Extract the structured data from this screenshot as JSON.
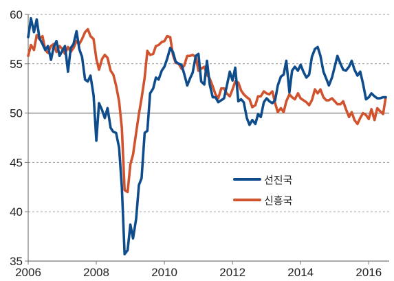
{
  "chart_data": {
    "type": "line",
    "title": "",
    "xlabel": "",
    "ylabel": "",
    "xlim": [
      2006.0,
      2016.6
    ],
    "ylim": [
      35,
      60
    ],
    "x_ticks": [
      2006,
      2008,
      2010,
      2012,
      2014,
      2016
    ],
    "x_tick_labels": [
      "2006",
      "2008",
      "2010",
      "2012",
      "2014",
      "2016"
    ],
    "y_ticks": [
      35,
      40,
      45,
      50,
      55,
      60
    ],
    "y_tick_labels": [
      "35",
      "40",
      "45",
      "50",
      "55",
      "60"
    ],
    "grid": "horizontal dashed",
    "reference_line": 50,
    "legend_position": "center-right",
    "colors": {
      "advanced": "#0e4c8c",
      "emerging": "#d0532e",
      "grid": "#9a9a9a",
      "axis": "#777777"
    },
    "series": [
      {
        "name": "선진국",
        "color": "#0e4c8c",
        "points": [
          [
            2006.0,
            57.7
          ],
          [
            2006.08,
            59.6
          ],
          [
            2006.17,
            58.2
          ],
          [
            2006.25,
            59.5
          ],
          [
            2006.33,
            57.6
          ],
          [
            2006.42,
            57.0
          ],
          [
            2006.5,
            56.4
          ],
          [
            2006.58,
            56.8
          ],
          [
            2006.67,
            55.4
          ],
          [
            2006.75,
            56.7
          ],
          [
            2006.83,
            57.3
          ],
          [
            2006.92,
            55.8
          ],
          [
            2007.0,
            56.3
          ],
          [
            2007.08,
            56.8
          ],
          [
            2007.17,
            54.2
          ],
          [
            2007.25,
            56.6
          ],
          [
            2007.33,
            57.0
          ],
          [
            2007.42,
            58.3
          ],
          [
            2007.5,
            56.5
          ],
          [
            2007.58,
            55.7
          ],
          [
            2007.67,
            53.4
          ],
          [
            2007.75,
            53.2
          ],
          [
            2007.83,
            53.8
          ],
          [
            2007.92,
            51.8
          ],
          [
            2008.0,
            47.2
          ],
          [
            2008.08,
            51.0
          ],
          [
            2008.17,
            50.3
          ],
          [
            2008.25,
            49.5
          ],
          [
            2008.33,
            50.5
          ],
          [
            2008.42,
            48.5
          ],
          [
            2008.5,
            48.1
          ],
          [
            2008.58,
            48.0
          ],
          [
            2008.67,
            46.5
          ],
          [
            2008.75,
            42.5
          ],
          [
            2008.83,
            35.7
          ],
          [
            2008.92,
            36.1
          ],
          [
            2009.0,
            38.7
          ],
          [
            2009.08,
            37.3
          ],
          [
            2009.17,
            39.3
          ],
          [
            2009.25,
            42.7
          ],
          [
            2009.33,
            43.4
          ],
          [
            2009.42,
            48.0
          ],
          [
            2009.5,
            48.2
          ],
          [
            2009.58,
            52.0
          ],
          [
            2009.67,
            52.5
          ],
          [
            2009.75,
            53.6
          ],
          [
            2009.83,
            53.4
          ],
          [
            2009.92,
            54.3
          ],
          [
            2010.0,
            54.7
          ],
          [
            2010.08,
            55.5
          ],
          [
            2010.17,
            56.6
          ],
          [
            2010.25,
            56.2
          ],
          [
            2010.33,
            55.2
          ],
          [
            2010.42,
            55.0
          ],
          [
            2010.5,
            54.9
          ],
          [
            2010.58,
            54.0
          ],
          [
            2010.67,
            52.8
          ],
          [
            2010.75,
            53.5
          ],
          [
            2010.83,
            54.1
          ],
          [
            2010.92,
            55.8
          ],
          [
            2011.0,
            56.0
          ],
          [
            2011.08,
            53.2
          ],
          [
            2011.17,
            52.9
          ],
          [
            2011.25,
            55.3
          ],
          [
            2011.33,
            52.9
          ],
          [
            2011.42,
            51.6
          ],
          [
            2011.5,
            51.6
          ],
          [
            2011.58,
            51.1
          ],
          [
            2011.67,
            51.3
          ],
          [
            2011.75,
            51.5
          ],
          [
            2011.83,
            52.7
          ],
          [
            2011.92,
            54.2
          ],
          [
            2012.0,
            53.3
          ],
          [
            2012.08,
            54.6
          ],
          [
            2012.17,
            51.2
          ],
          [
            2012.25,
            51.4
          ],
          [
            2012.33,
            51.1
          ],
          [
            2012.42,
            49.5
          ],
          [
            2012.5,
            48.8
          ],
          [
            2012.58,
            49.3
          ],
          [
            2012.67,
            48.9
          ],
          [
            2012.75,
            49.9
          ],
          [
            2012.83,
            49.6
          ],
          [
            2012.92,
            51.1
          ],
          [
            2013.0,
            51.5
          ],
          [
            2013.08,
            51.2
          ],
          [
            2013.17,
            51.0
          ],
          [
            2013.25,
            51.3
          ],
          [
            2013.33,
            52.8
          ],
          [
            2013.42,
            53.7
          ],
          [
            2013.5,
            53.9
          ],
          [
            2013.58,
            55.3
          ],
          [
            2013.67,
            52.1
          ],
          [
            2013.75,
            54.3
          ],
          [
            2013.83,
            54.7
          ],
          [
            2013.92,
            54.3
          ],
          [
            2014.0,
            54.9
          ],
          [
            2014.08,
            54.2
          ],
          [
            2014.17,
            53.6
          ],
          [
            2014.25,
            53.9
          ],
          [
            2014.33,
            55.7
          ],
          [
            2014.42,
            56.5
          ],
          [
            2014.5,
            56.7
          ],
          [
            2014.58,
            55.8
          ],
          [
            2014.67,
            54.2
          ],
          [
            2014.75,
            53.5
          ],
          [
            2014.83,
            52.8
          ],
          [
            2014.92,
            53.6
          ],
          [
            2015.0,
            54.7
          ],
          [
            2015.08,
            55.8
          ],
          [
            2015.17,
            55.0
          ],
          [
            2015.25,
            54.4
          ],
          [
            2015.33,
            54.3
          ],
          [
            2015.42,
            54.7
          ],
          [
            2015.5,
            55.3
          ],
          [
            2015.58,
            54.4
          ],
          [
            2015.67,
            53.8
          ],
          [
            2015.75,
            54.2
          ],
          [
            2015.83,
            53.0
          ],
          [
            2015.92,
            51.4
          ],
          [
            2016.0,
            51.6
          ],
          [
            2016.08,
            52.0
          ],
          [
            2016.17,
            51.7
          ],
          [
            2016.25,
            51.5
          ],
          [
            2016.33,
            51.5
          ],
          [
            2016.42,
            51.6
          ],
          [
            2016.5,
            51.6
          ]
        ]
      },
      {
        "name": "신흥국",
        "color": "#d0532e",
        "points": [
          [
            2006.0,
            55.8
          ],
          [
            2006.08,
            56.9
          ],
          [
            2006.17,
            56.4
          ],
          [
            2006.25,
            57.9
          ],
          [
            2006.33,
            57.5
          ],
          [
            2006.42,
            57.8
          ],
          [
            2006.5,
            56.4
          ],
          [
            2006.58,
            56.1
          ],
          [
            2006.67,
            56.8
          ],
          [
            2006.75,
            57.0
          ],
          [
            2006.83,
            56.2
          ],
          [
            2006.92,
            56.8
          ],
          [
            2007.0,
            56.5
          ],
          [
            2007.08,
            56.0
          ],
          [
            2007.17,
            56.7
          ],
          [
            2007.25,
            56.2
          ],
          [
            2007.33,
            56.6
          ],
          [
            2007.42,
            57.3
          ],
          [
            2007.5,
            57.0
          ],
          [
            2007.58,
            57.5
          ],
          [
            2007.67,
            58.2
          ],
          [
            2007.75,
            58.5
          ],
          [
            2007.83,
            57.8
          ],
          [
            2007.92,
            57.5
          ],
          [
            2008.0,
            55.5
          ],
          [
            2008.08,
            54.4
          ],
          [
            2008.17,
            55.5
          ],
          [
            2008.25,
            55.9
          ],
          [
            2008.33,
            55.6
          ],
          [
            2008.42,
            54.3
          ],
          [
            2008.5,
            53.9
          ],
          [
            2008.58,
            52.8
          ],
          [
            2008.67,
            51.2
          ],
          [
            2008.75,
            48.5
          ],
          [
            2008.83,
            42.2
          ],
          [
            2008.92,
            42.0
          ],
          [
            2009.0,
            44.8
          ],
          [
            2009.08,
            45.8
          ],
          [
            2009.17,
            48.0
          ],
          [
            2009.25,
            49.9
          ],
          [
            2009.33,
            51.5
          ],
          [
            2009.42,
            53.6
          ],
          [
            2009.5,
            56.3
          ],
          [
            2009.58,
            55.9
          ],
          [
            2009.67,
            56.0
          ],
          [
            2009.75,
            56.8
          ],
          [
            2009.83,
            56.9
          ],
          [
            2009.92,
            57.2
          ],
          [
            2010.0,
            57.3
          ],
          [
            2010.08,
            57.8
          ],
          [
            2010.17,
            57.7
          ],
          [
            2010.25,
            55.9
          ],
          [
            2010.33,
            55.1
          ],
          [
            2010.42,
            55.0
          ],
          [
            2010.5,
            54.5
          ],
          [
            2010.58,
            54.8
          ],
          [
            2010.67,
            55.8
          ],
          [
            2010.75,
            55.8
          ],
          [
            2010.83,
            55.9
          ],
          [
            2010.92,
            55.7
          ],
          [
            2011.0,
            54.3
          ],
          [
            2011.08,
            54.5
          ],
          [
            2011.17,
            54.7
          ],
          [
            2011.25,
            53.9
          ],
          [
            2011.33,
            53.5
          ],
          [
            2011.42,
            52.7
          ],
          [
            2011.5,
            51.9
          ],
          [
            2011.58,
            51.5
          ],
          [
            2011.67,
            52.5
          ],
          [
            2011.75,
            52.5
          ],
          [
            2011.83,
            52.0
          ],
          [
            2011.92,
            51.7
          ],
          [
            2012.0,
            52.4
          ],
          [
            2012.08,
            53.2
          ],
          [
            2012.17,
            53.1
          ],
          [
            2012.25,
            52.3
          ],
          [
            2012.33,
            51.9
          ],
          [
            2012.42,
            51.6
          ],
          [
            2012.5,
            51.4
          ],
          [
            2012.58,
            50.6
          ],
          [
            2012.67,
            50.8
          ],
          [
            2012.75,
            51.7
          ],
          [
            2012.83,
            51.7
          ],
          [
            2012.92,
            52.2
          ],
          [
            2013.0,
            52.0
          ],
          [
            2013.08,
            51.9
          ],
          [
            2013.17,
            52.2
          ],
          [
            2013.25,
            51.0
          ],
          [
            2013.33,
            50.1
          ],
          [
            2013.42,
            50.5
          ],
          [
            2013.5,
            50.1
          ],
          [
            2013.58,
            51.2
          ],
          [
            2013.67,
            51.9
          ],
          [
            2013.75,
            51.6
          ],
          [
            2013.83,
            51.4
          ],
          [
            2013.92,
            52.0
          ],
          [
            2014.0,
            51.5
          ],
          [
            2014.08,
            51.3
          ],
          [
            2014.17,
            51.1
          ],
          [
            2014.25,
            50.8
          ],
          [
            2014.33,
            51.3
          ],
          [
            2014.42,
            52.4
          ],
          [
            2014.5,
            52.0
          ],
          [
            2014.58,
            52.4
          ],
          [
            2014.67,
            51.6
          ],
          [
            2014.75,
            51.3
          ],
          [
            2014.83,
            51.3
          ],
          [
            2014.92,
            51.5
          ],
          [
            2015.0,
            51.2
          ],
          [
            2015.08,
            50.9
          ],
          [
            2015.17,
            50.9
          ],
          [
            2015.25,
            51.2
          ],
          [
            2015.33,
            50.4
          ],
          [
            2015.42,
            49.6
          ],
          [
            2015.5,
            50.1
          ],
          [
            2015.58,
            49.3
          ],
          [
            2015.67,
            48.9
          ],
          [
            2015.75,
            49.5
          ],
          [
            2015.83,
            50.0
          ],
          [
            2015.92,
            49.8
          ],
          [
            2016.0,
            49.4
          ],
          [
            2016.08,
            50.4
          ],
          [
            2016.17,
            49.3
          ],
          [
            2016.25,
            50.5
          ],
          [
            2016.33,
            50.2
          ],
          [
            2016.42,
            49.9
          ],
          [
            2016.5,
            51.6
          ]
        ]
      }
    ]
  }
}
